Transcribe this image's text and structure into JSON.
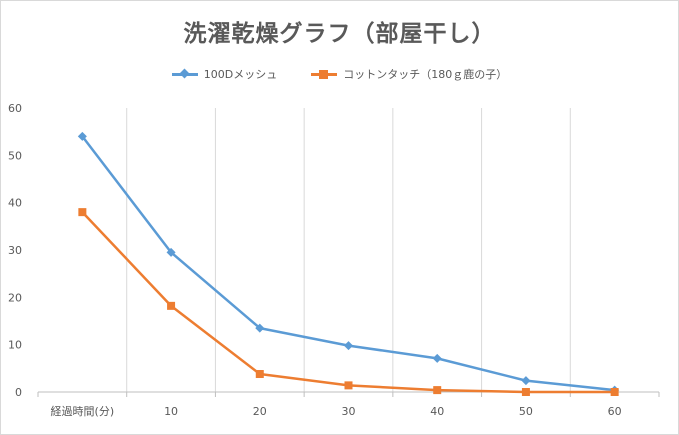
{
  "chart_data": {
    "type": "line",
    "title": "洗濯乾燥グラフ（部屋干し）",
    "x_tick_labels": [
      "経過時間(分)",
      "10",
      "20",
      "30",
      "40",
      "50",
      "60"
    ],
    "x": [
      0,
      10,
      20,
      30,
      40,
      50,
      60
    ],
    "y_ticks": [
      "0",
      "10",
      "20",
      "30",
      "40",
      "50",
      "60"
    ],
    "ylim": [
      0,
      60
    ],
    "grid": "vertical",
    "legend_position": "top",
    "series": [
      {
        "name": "100Dメッシュ",
        "color": "#5b9bd5",
        "marker": "diamond",
        "values": [
          54,
          29.5,
          13.5,
          9.8,
          7.1,
          2.4,
          0.4
        ]
      },
      {
        "name": "コットンタッチ（180ｇ鹿の子）",
        "color": "#ed7d31",
        "marker": "square",
        "values": [
          38,
          18.2,
          3.8,
          1.4,
          0.4,
          0,
          0
        ]
      }
    ]
  }
}
